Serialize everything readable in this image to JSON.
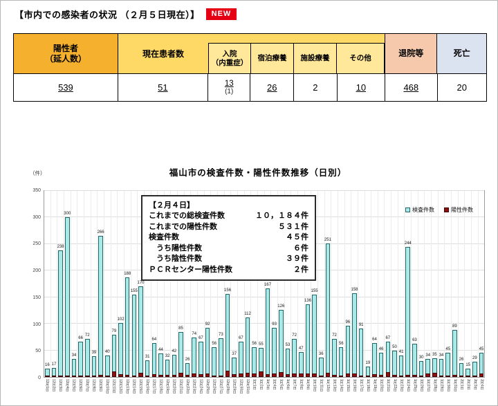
{
  "page": {
    "title": "【市内での感染者の状況 （２月５日現在）】",
    "new_badge": "NEW"
  },
  "summary_table": {
    "headers": {
      "positive": "陽性者\n（延人数）",
      "current": "現在患者数",
      "hospitalized": "入院\n（内重症）",
      "hotel": "宿泊療養",
      "facility": "施設療養",
      "other": "その他",
      "discharged": "退院等",
      "death": "死亡"
    },
    "values": {
      "positive": "539",
      "current": "51",
      "hospitalized": "13",
      "hospitalized_severe": "(1)",
      "hotel": "26",
      "facility": "2",
      "other": "10",
      "discharged": "468",
      "death": "20"
    }
  },
  "info_box": {
    "title": "【２月４日】",
    "rows": [
      {
        "label": "これまでの総検査件数",
        "value": "１０，１８４件"
      },
      {
        "label": "これまでの陽性件数",
        "value": "５３１件"
      },
      {
        "label": "検査件数",
        "value": "４５件"
      },
      {
        "label": "　うち陽性件数",
        "value": "６件"
      },
      {
        "label": "　うち陰性件数",
        "value": "３９件"
      },
      {
        "label": "ＰＣＲセンター陽性件数",
        "value": "２件"
      }
    ]
  },
  "chart_data": {
    "type": "bar",
    "title": "福山市の検査件数・陽性件数推移（日別）",
    "ylabel": "（件）",
    "ylim": [
      0,
      350
    ],
    "ytick_step": 50,
    "grid": true,
    "legend_position": "top-right-inside",
    "categories": [
      "12月1日",
      "12月2日",
      "12月3日",
      "12月4日",
      "12月5日",
      "12月6日",
      "12月7日",
      "12月8日",
      "12月9日",
      "12月10日",
      "12月11日",
      "12月12日",
      "12月13日",
      "12月14日",
      "12月15日",
      "12月16日",
      "12月17日",
      "12月18日",
      "12月19日",
      "12月20日",
      "12月21日",
      "12月22日",
      "12月23日",
      "12月24日",
      "12月25日",
      "12月26日",
      "12月27日",
      "12月28日",
      "12月29日",
      "12月30日",
      "12月31日",
      "1月1日",
      "1月2日",
      "1月3日",
      "1月4日",
      "1月5日",
      "1月6日",
      "1月7日",
      "1月8日",
      "1月9日",
      "1月10日",
      "1月11日",
      "1月12日",
      "1月13日",
      "1月14日",
      "1月15日",
      "1月16日",
      "1月17日",
      "1月18日",
      "1月19日",
      "1月20日",
      "1月21日",
      "1月22日",
      "1月23日",
      "1月24日",
      "1月25日",
      "1月26日",
      "1月27日",
      "1月28日",
      "1月29日",
      "1月30日",
      "1月31日",
      "2月1日",
      "2月2日",
      "2月3日",
      "2月4日"
    ],
    "series": [
      {
        "name": "検査件数",
        "color": "#a9e9e8",
        "values": [
          16,
          17,
          238,
          300,
          34,
          66,
          72,
          39,
          266,
          40,
          79,
          102,
          188,
          155,
          170,
          31,
          64,
          44,
          32,
          42,
          85,
          26,
          74,
          67,
          92,
          56,
          73,
          156,
          37,
          67,
          112,
          56,
          55,
          167,
          93,
          126,
          53,
          72,
          47,
          136,
          155,
          36,
          251,
          72,
          56,
          96,
          158,
          91,
          19,
          64,
          46,
          67,
          50,
          41,
          244,
          63,
          30,
          34,
          35,
          34,
          45,
          89,
          26,
          15,
          29,
          45
        ]
      },
      {
        "name": "陽性件数",
        "color": "#8e1010",
        "values": [
          1,
          2,
          3,
          3,
          2,
          1,
          2,
          2,
          4,
          3,
          10,
          5,
          4,
          3,
          8,
          3,
          5,
          4,
          4,
          4,
          8,
          4,
          6,
          5,
          6,
          2,
          2,
          12,
          5,
          7,
          8,
          7,
          10,
          5,
          7,
          9,
          5,
          6,
          6,
          6,
          6,
          3,
          8,
          4,
          3,
          7,
          7,
          2,
          3,
          5,
          4,
          9,
          4,
          3,
          4,
          4,
          3,
          7,
          8,
          2,
          3,
          4,
          3,
          2,
          2,
          6
        ]
      }
    ]
  }
}
